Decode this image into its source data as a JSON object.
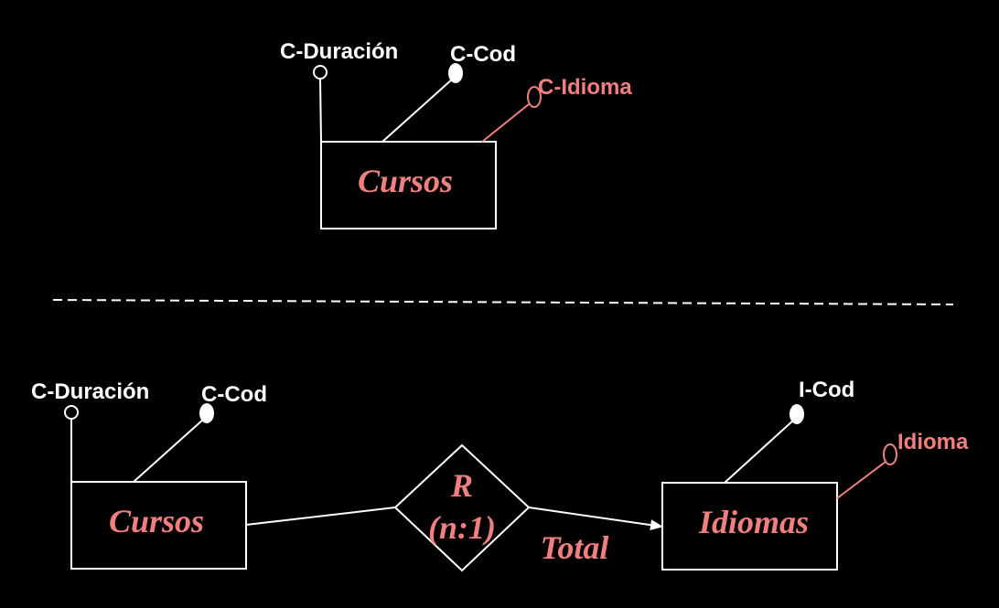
{
  "colors": {
    "background": "#000000",
    "primary": "#ffffff",
    "accent": "#f08080"
  },
  "top": {
    "entity": {
      "name": "Cursos"
    },
    "attributes": [
      {
        "label": "C-Duración",
        "type": "simple"
      },
      {
        "label": "C-Cod",
        "type": "key"
      },
      {
        "label": "C-Idioma",
        "type": "simple-highlighted"
      }
    ]
  },
  "bottom": {
    "entity_left": {
      "name": "Cursos",
      "attributes": [
        {
          "label": "C-Duración",
          "type": "simple"
        },
        {
          "label": "C-Cod",
          "type": "key"
        }
      ]
    },
    "relationship": {
      "name": "R",
      "cardinality": "(n:1)"
    },
    "participation": "Total",
    "entity_right": {
      "name": "Idiomas",
      "attributes": [
        {
          "label": "I-Cod",
          "type": "key"
        },
        {
          "label": "Idioma",
          "type": "simple-highlighted"
        }
      ]
    }
  }
}
